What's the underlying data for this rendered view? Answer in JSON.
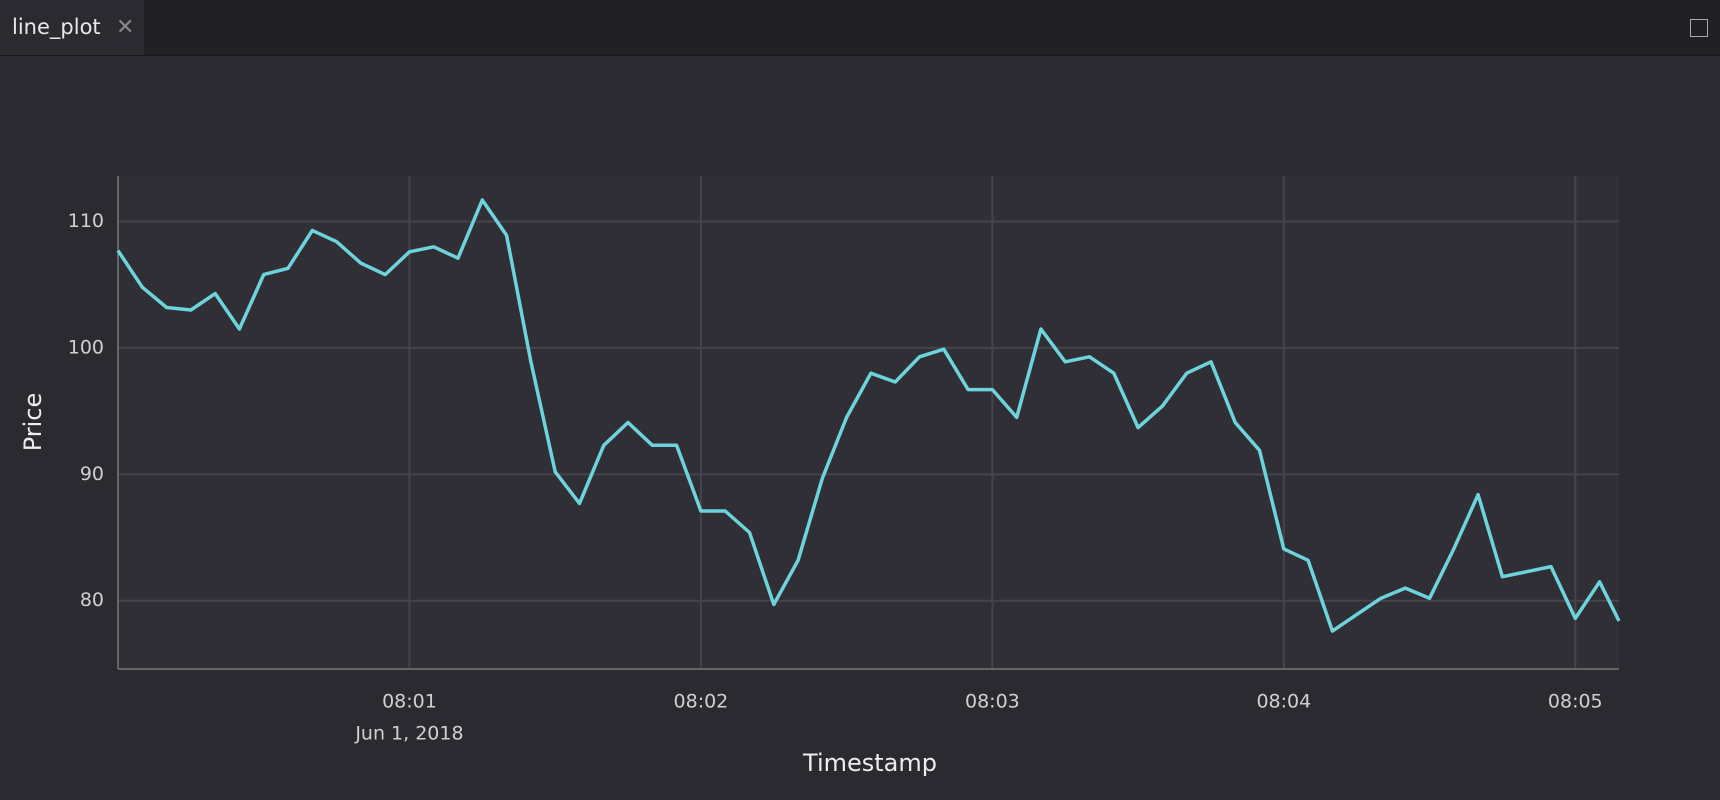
{
  "tab": {
    "title": "line_plot"
  },
  "chart_data": {
    "type": "line",
    "xlabel": "Timestamp",
    "ylabel": "Price",
    "x_date_label": "Jun 1, 2018",
    "x": [
      "08:00:00",
      "08:00:05",
      "08:00:10",
      "08:00:15",
      "08:00:20",
      "08:00:25",
      "08:00:30",
      "08:00:35",
      "08:00:40",
      "08:00:45",
      "08:00:50",
      "08:00:55",
      "08:01:00",
      "08:01:05",
      "08:01:10",
      "08:01:15",
      "08:01:20",
      "08:01:25",
      "08:01:30",
      "08:01:35",
      "08:01:40",
      "08:01:45",
      "08:01:50",
      "08:01:55",
      "08:02:00",
      "08:02:05",
      "08:02:10",
      "08:02:15",
      "08:02:20",
      "08:02:25",
      "08:02:30",
      "08:02:35",
      "08:02:40",
      "08:02:45",
      "08:02:50",
      "08:02:55",
      "08:03:00",
      "08:03:05",
      "08:03:10",
      "08:03:15",
      "08:03:20",
      "08:03:25",
      "08:03:30",
      "08:03:35",
      "08:03:40",
      "08:03:45",
      "08:03:50",
      "08:03:55",
      "08:04:00",
      "08:04:05",
      "08:04:10",
      "08:04:15",
      "08:04:20",
      "08:04:25",
      "08:04:30",
      "08:04:35",
      "08:04:40",
      "08:04:45",
      "08:04:50",
      "08:04:55",
      "08:05:00",
      "08:05:05",
      "08:05:09"
    ],
    "series": [
      {
        "name": "Price",
        "color": "#6dd3dc",
        "values": [
          107.7,
          104.8,
          103.2,
          103,
          104.3,
          101.5,
          105.8,
          106.3,
          109.3,
          108.4,
          106.7,
          105.8,
          107.6,
          108,
          107.1,
          111.7,
          108.9,
          98.9,
          90.2,
          87.7,
          92.3,
          94.1,
          92.3,
          92.3,
          87.1,
          87.1,
          85.4,
          79.7,
          83.2,
          89.7,
          94.5,
          98,
          97.3,
          99.3,
          99.9,
          96.7,
          96.7,
          94.5,
          101.5,
          98.9,
          99.3,
          98,
          93.7,
          95.4,
          98,
          98.9,
          94.1,
          91.9,
          84.1,
          83.2,
          77.6,
          78.9,
          80.2,
          81,
          80.2,
          84.1,
          88.4,
          81.9,
          82.3,
          82.7,
          78.6,
          81.5,
          78.4
        ]
      }
    ],
    "xlim": [
      "08:00:00",
      "08:05:09"
    ],
    "xticks": [
      {
        "value": "08:01:00",
        "label": "08:01"
      },
      {
        "value": "08:02:00",
        "label": "08:02"
      },
      {
        "value": "08:03:00",
        "label": "08:03"
      },
      {
        "value": "08:04:00",
        "label": "08:04"
      },
      {
        "value": "08:05:00",
        "label": "08:05"
      }
    ],
    "ylim": [
      74.6,
      113.6
    ],
    "yticks": [
      80,
      90,
      100,
      110
    ],
    "grid": true
  }
}
